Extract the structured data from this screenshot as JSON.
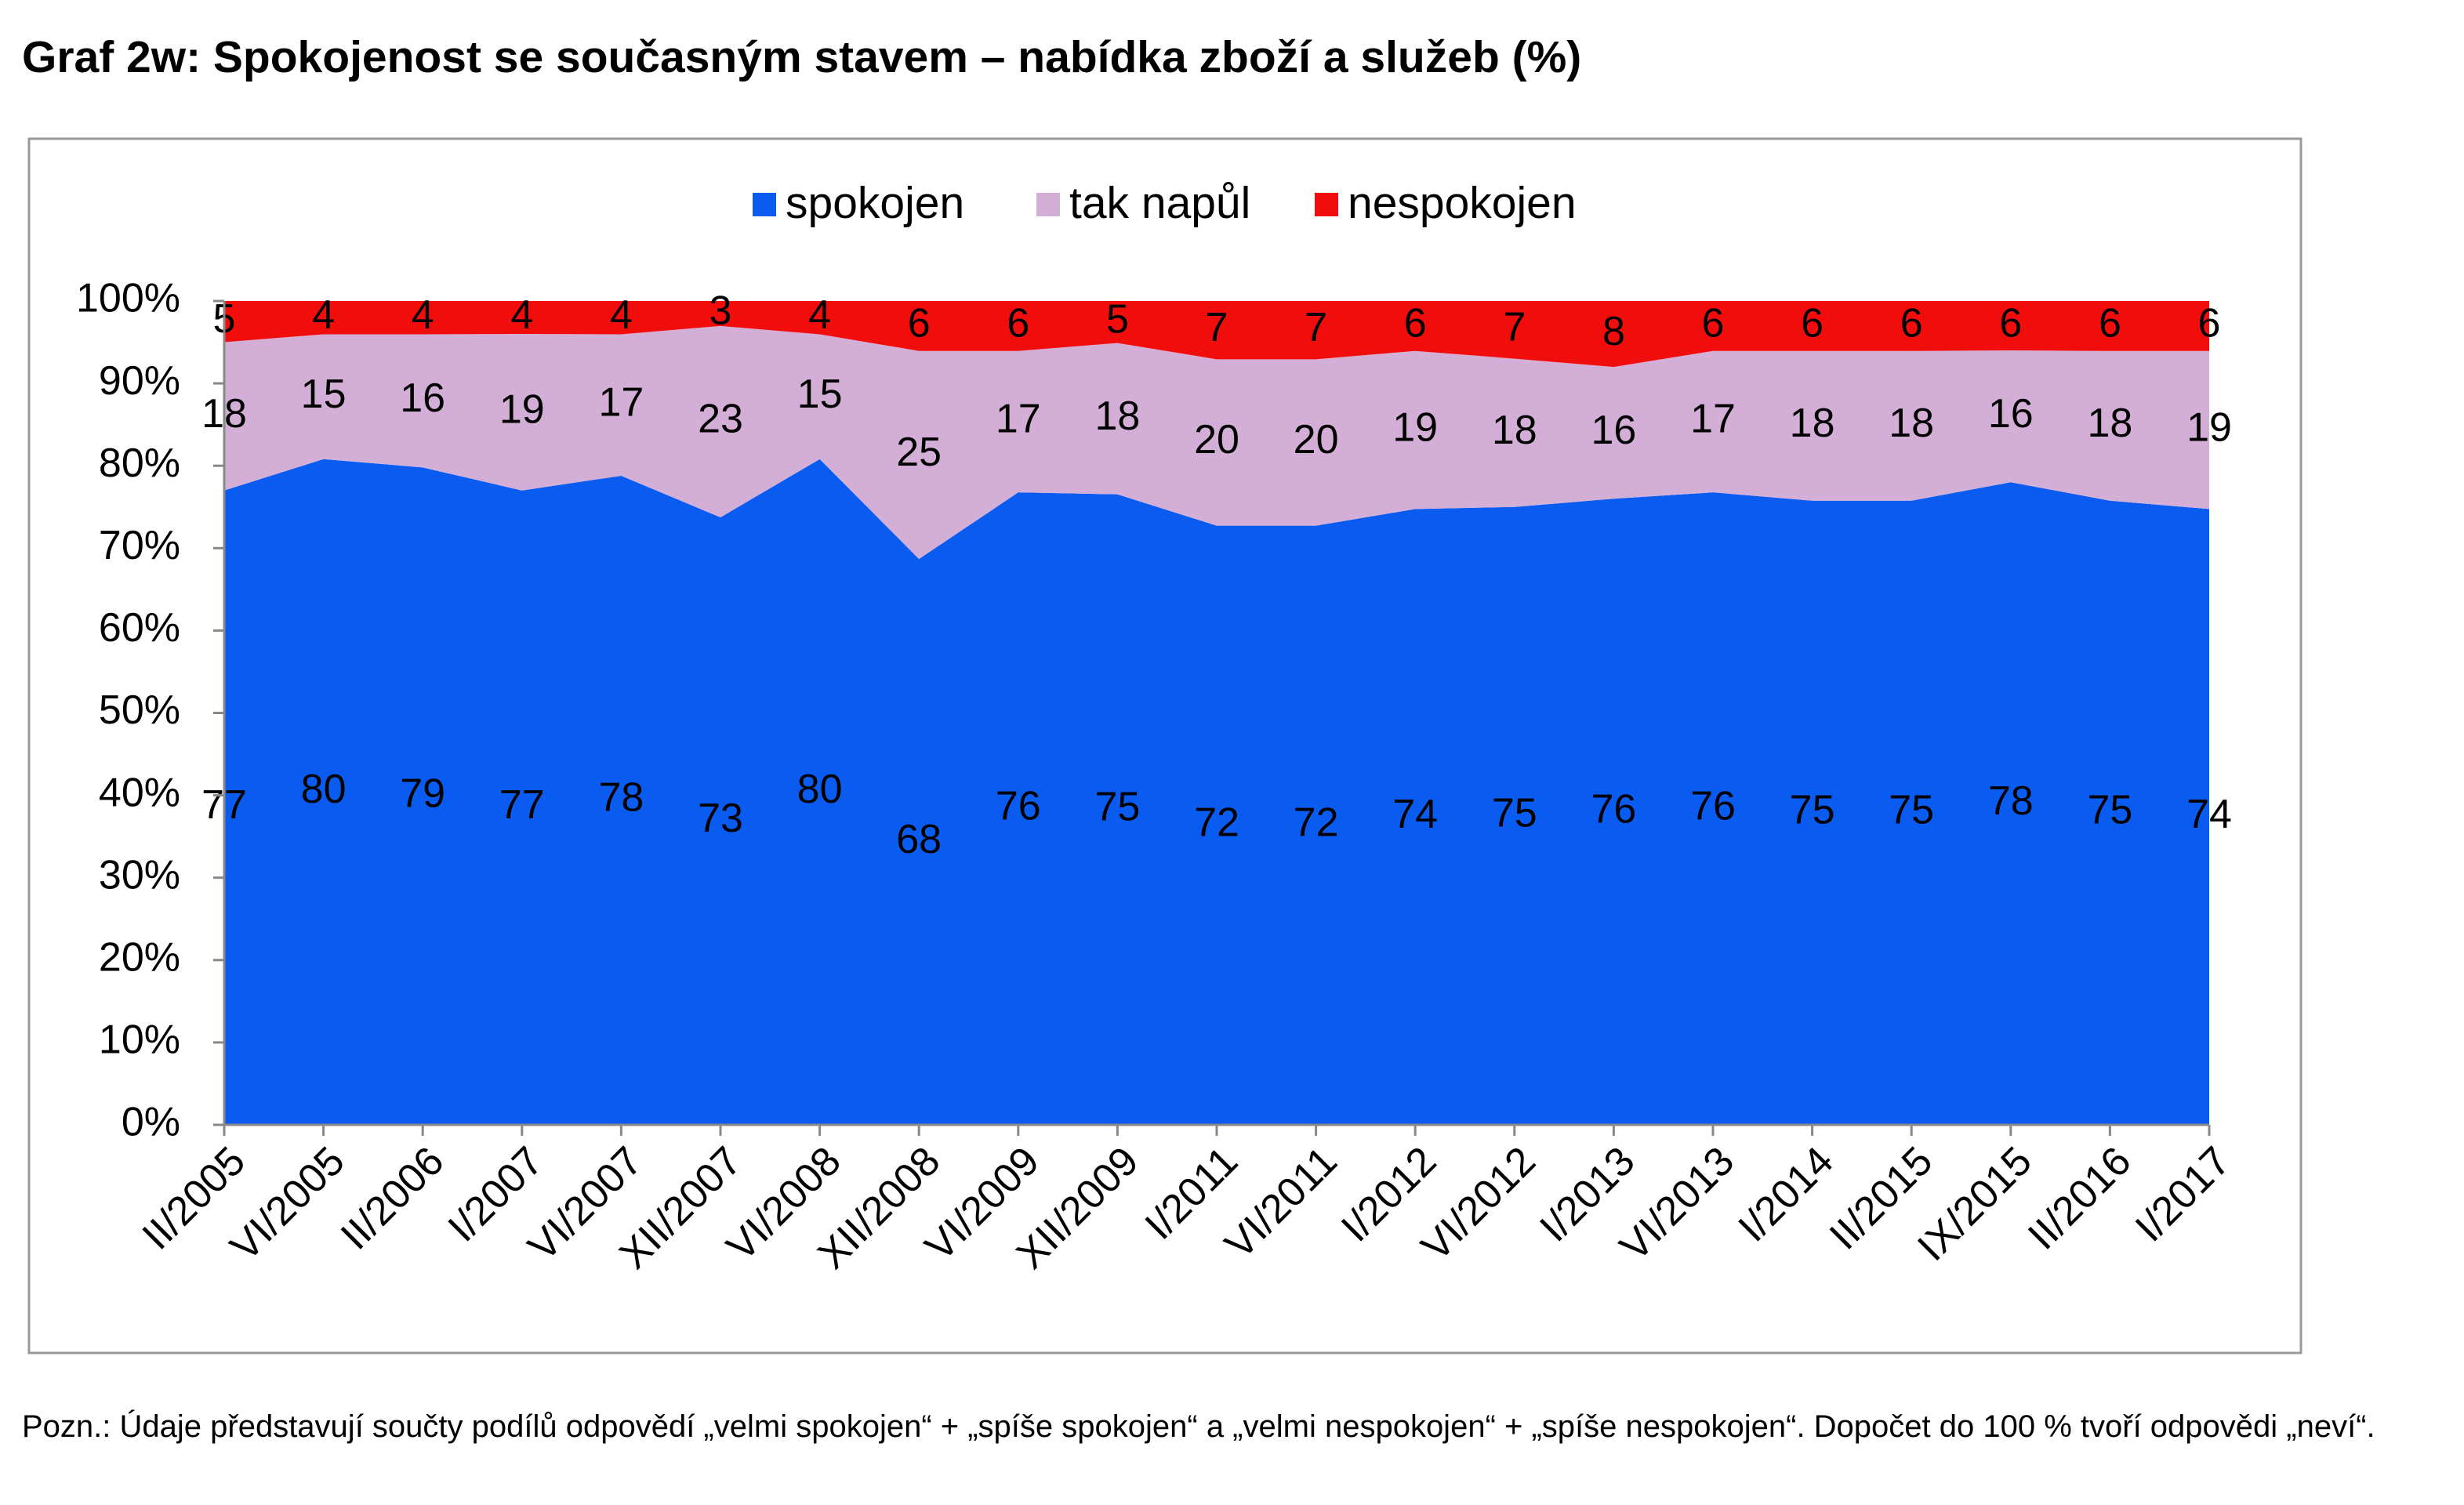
{
  "chart_data": {
    "type": "area",
    "stacking": "percent",
    "title": "Graf 2w: Spokojenost se současným stavem – nabídka zboží a služeb (%)",
    "note": "Pozn.: Údaje představují součty podílů odpovědí „velmi spokojen“ + „spíše spokojen“ a „velmi nespokojen“ + „spíše nespokojen“. Dopočet do 100 % tvoří odpovědi „neví“.",
    "legend": "top",
    "categories": [
      "II/2005",
      "VI/2005",
      "II/2006",
      "I/2007",
      "VI/2007",
      "XII/2007",
      "VI/2008",
      "XII/2008",
      "VI/2009",
      "XII/2009",
      "I/2011",
      "VI/2011",
      "I/2012",
      "VI/2012",
      "I/2013",
      "VI/2013",
      "I/2014",
      "II/2015",
      "IX/2015",
      "II/2016",
      "I/2017"
    ],
    "series": [
      {
        "name": "spokojen",
        "color": "#0a5cf0",
        "values": [
          77,
          80,
          79,
          77,
          78,
          73,
          80,
          68,
          76,
          75,
          72,
          72,
          74,
          75,
          76,
          76,
          75,
          75,
          78,
          75,
          74
        ]
      },
      {
        "name": "tak napůl",
        "color": "#d3aed6",
        "values": [
          18,
          15,
          16,
          19,
          17,
          23,
          15,
          25,
          17,
          18,
          20,
          20,
          19,
          18,
          16,
          17,
          18,
          18,
          16,
          18,
          19
        ]
      },
      {
        "name": "nespokojen",
        "color": "#f20d0d",
        "values": [
          5,
          4,
          4,
          4,
          4,
          3,
          4,
          6,
          6,
          5,
          7,
          7,
          6,
          7,
          8,
          6,
          6,
          6,
          6,
          6,
          6
        ]
      }
    ],
    "ylim": [
      0,
      100
    ],
    "yticks": [
      {
        "value": 0,
        "label": "0%"
      },
      {
        "value": 10,
        "label": "10%"
      },
      {
        "value": 20,
        "label": "20%"
      },
      {
        "value": 30,
        "label": "30%"
      },
      {
        "value": 40,
        "label": "40%"
      },
      {
        "value": 50,
        "label": "50%"
      },
      {
        "value": 60,
        "label": "60%"
      },
      {
        "value": 70,
        "label": "70%"
      },
      {
        "value": 80,
        "label": "80%"
      },
      {
        "value": 90,
        "label": "90%"
      },
      {
        "value": 100,
        "label": "100%"
      }
    ]
  }
}
